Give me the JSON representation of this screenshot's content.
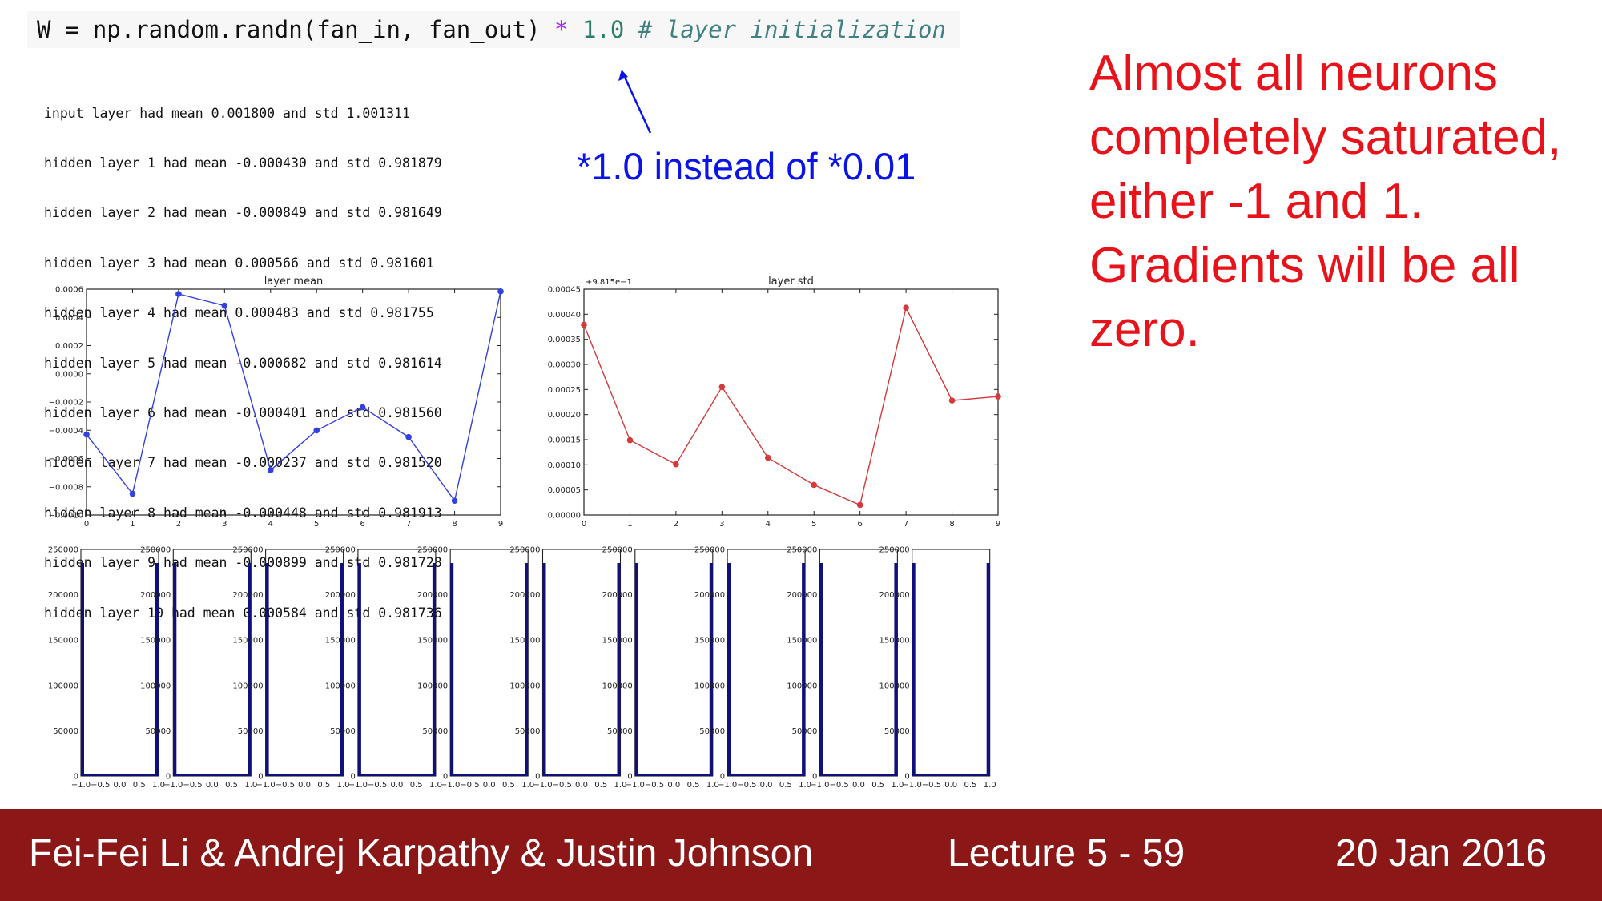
{
  "code": {
    "line_prefix": "W = np.random.randn(fan_in, fan_out) ",
    "operator": "*",
    "number": "1.0",
    "comment": "# layer initialization"
  },
  "log_lines": [
    "input layer had mean 0.001800 and std 1.001311",
    "hidden layer 1 had mean -0.000430 and std 0.981879",
    "hidden layer 2 had mean -0.000849 and std 0.981649",
    "hidden layer 3 had mean 0.000566 and std 0.981601",
    "hidden layer 4 had mean 0.000483 and std 0.981755",
    "hidden layer 5 had mean -0.000682 and std 0.981614",
    "hidden layer 6 had mean -0.000401 and std 0.981560",
    "hidden layer 7 had mean -0.000237 and std 0.981520",
    "hidden layer 8 had mean -0.000448 and std 0.981913",
    "hidden layer 9 had mean -0.000899 and std 0.981728",
    "hidden layer 10 had mean 0.000584 and std 0.981736"
  ],
  "annotation": "*1.0 instead of *0.01",
  "callout": "Almost all neurons completely saturated, either -1 and 1. Gradients will be all zero.",
  "footer": {
    "authors": "Fei-Fei Li & Andrej Karpathy & Justin Johnson",
    "lecture": "Lecture 5 - 59",
    "date": "20 Jan 2016"
  },
  "colors": {
    "mean_line": "#3340e0",
    "std_line": "#d43a3a",
    "hist_bar": "#10107a",
    "annotation": "#0a14e6",
    "callout": "#e8121a",
    "footer_bg": "#8c1717"
  },
  "chart_data": [
    {
      "type": "line",
      "title": "layer mean",
      "x": [
        0,
        1,
        2,
        3,
        4,
        5,
        6,
        7,
        8,
        9
      ],
      "values": [
        -0.00043,
        -0.000849,
        0.000566,
        0.000483,
        -0.000682,
        -0.000401,
        -0.000237,
        -0.000448,
        -0.000899,
        0.000584
      ],
      "xlim": [
        0,
        9
      ],
      "ylim": [
        -0.001,
        0.0006
      ],
      "xticks": [
        "0",
        "1",
        "2",
        "3",
        "4",
        "5",
        "6",
        "7",
        "8",
        "9"
      ],
      "yticks": [
        {
          "value": 0.0006,
          "label": "0.0006"
        },
        {
          "value": 0.0004,
          "label": "0.0004"
        },
        {
          "value": 0.0002,
          "label": "0.0002"
        },
        {
          "value": 0.0,
          "label": "0.0000"
        },
        {
          "value": -0.0002,
          "label": "−0.0002"
        },
        {
          "value": -0.0004,
          "label": "−0.0004"
        },
        {
          "value": -0.0006,
          "label": "−0.0006"
        },
        {
          "value": -0.0008,
          "label": "−0.0008"
        },
        {
          "value": -0.001,
          "label": "−0.0010"
        }
      ],
      "grid": false
    },
    {
      "type": "line",
      "title": "layer std",
      "offset_label": "+9.815e−1",
      "x": [
        0,
        1,
        2,
        3,
        4,
        5,
        6,
        7,
        8,
        9
      ],
      "values": [
        0.981879,
        0.981649,
        0.981601,
        0.981755,
        0.981614,
        0.98156,
        0.98152,
        0.981913,
        0.981728,
        0.981736
      ],
      "offset": 0.9815,
      "xlim": [
        0,
        9
      ],
      "ylim": [
        0.0,
        0.00045
      ],
      "xticks": [
        "0",
        "1",
        "2",
        "3",
        "4",
        "5",
        "6",
        "7",
        "8",
        "9"
      ],
      "yticks": [
        {
          "value": 0.00045,
          "label": "0.00045"
        },
        {
          "value": 0.0004,
          "label": "0.00040"
        },
        {
          "value": 0.00035,
          "label": "0.00035"
        },
        {
          "value": 0.0003,
          "label": "0.00030"
        },
        {
          "value": 0.00025,
          "label": "0.00025"
        },
        {
          "value": 0.0002,
          "label": "0.00020"
        },
        {
          "value": 0.00015,
          "label": "0.00015"
        },
        {
          "value": 0.0001,
          "label": "0.00010"
        },
        {
          "value": 5e-05,
          "label": "0.00005"
        },
        {
          "value": 0.0,
          "label": "0.00000"
        }
      ],
      "grid": false
    },
    {
      "type": "bar",
      "description_count": 10,
      "histograms": [
        {
          "layer": 1,
          "counts_at_edges": {
            "-1.0": 235000,
            "1.0": 235000
          }
        },
        {
          "layer": 2,
          "counts_at_edges": {
            "-1.0": 235000,
            "1.0": 235000
          }
        },
        {
          "layer": 3,
          "counts_at_edges": {
            "-1.0": 235000,
            "1.0": 235000
          }
        },
        {
          "layer": 4,
          "counts_at_edges": {
            "-1.0": 235000,
            "1.0": 235000
          }
        },
        {
          "layer": 5,
          "counts_at_edges": {
            "-1.0": 235000,
            "1.0": 235000
          }
        },
        {
          "layer": 6,
          "counts_at_edges": {
            "-1.0": 235000,
            "1.0": 235000
          }
        },
        {
          "layer": 7,
          "counts_at_edges": {
            "-1.0": 235000,
            "1.0": 235000
          }
        },
        {
          "layer": 8,
          "counts_at_edges": {
            "-1.0": 235000,
            "1.0": 235000
          }
        },
        {
          "layer": 9,
          "counts_at_edges": {
            "-1.0": 235000,
            "1.0": 235000
          }
        },
        {
          "layer": 10,
          "counts_at_edges": {
            "-1.0": 235000,
            "1.0": 235000
          }
        }
      ],
      "xlim": [
        -1.0,
        1.0
      ],
      "ylim": [
        0,
        250000
      ],
      "xticks": [
        "−1.0",
        "−0.5",
        "0.0",
        "0.5",
        "1.0"
      ],
      "yticks": [
        "0",
        "50000",
        "100000",
        "150000",
        "200000",
        "250000"
      ]
    }
  ]
}
